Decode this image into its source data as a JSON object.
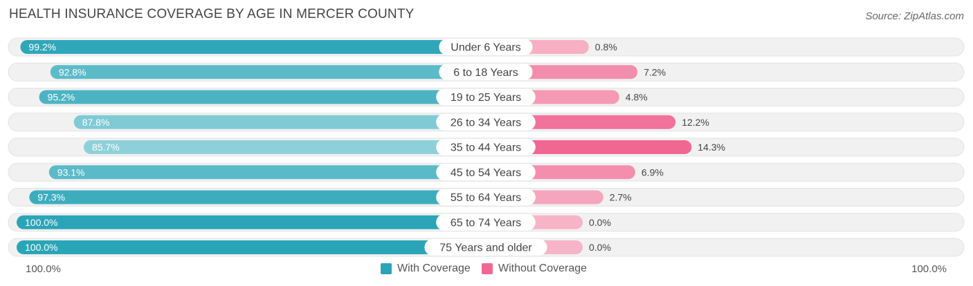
{
  "header": {
    "title": "HEALTH INSURANCE COVERAGE BY AGE IN MERCER COUNTY",
    "source": "Source: ZipAtlas.com"
  },
  "chart_data": {
    "type": "bar",
    "orientation": "horizontal-diverging",
    "title": "HEALTH INSURANCE COVERAGE BY AGE IN MERCER COUNTY",
    "categories": [
      "Under 6 Years",
      "6 to 18 Years",
      "19 to 25 Years",
      "26 to 34 Years",
      "35 to 44 Years",
      "45 to 54 Years",
      "55 to 64 Years",
      "65 to 74 Years",
      "75 Years and older"
    ],
    "series": [
      {
        "name": "With Coverage",
        "values": [
          99.2,
          92.8,
          95.2,
          87.8,
          85.7,
          93.1,
          97.3,
          100.0,
          100.0
        ],
        "labels": [
          "99.2%",
          "92.8%",
          "95.2%",
          "87.8%",
          "85.7%",
          "93.1%",
          "97.3%",
          "100.0%",
          "100.0%"
        ]
      },
      {
        "name": "Without Coverage",
        "values": [
          0.8,
          7.2,
          4.8,
          12.2,
          14.3,
          6.9,
          2.7,
          0.0,
          0.0
        ],
        "labels": [
          "0.8%",
          "7.2%",
          "4.8%",
          "12.2%",
          "14.3%",
          "6.9%",
          "2.7%",
          "0.0%",
          "0.0%"
        ]
      }
    ],
    "axis": {
      "left_label": "100.0%",
      "right_label": "100.0%",
      "left_max": 100,
      "right_max": 100
    },
    "legend_position": "bottom-center",
    "colors": {
      "with_dark": "#2aa5b7",
      "with_light": "#8ed0da",
      "without_dark": "#f06793",
      "without_light": "#f7b3c8",
      "track": "#f1f1f1",
      "track_border": "#e2e2e2"
    }
  }
}
